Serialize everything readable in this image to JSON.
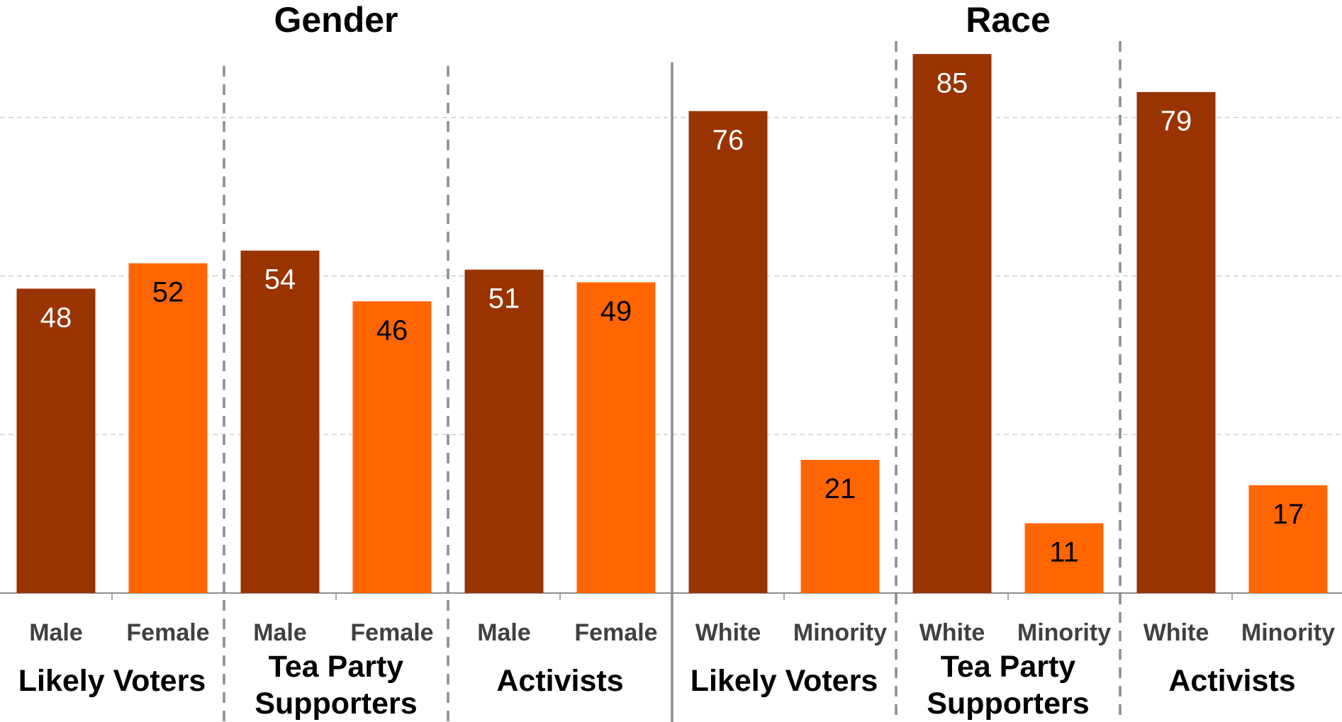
{
  "chart_data": {
    "type": "bar",
    "sections": [
      {
        "title": "Gender",
        "groups": [
          {
            "label": [
              "Likely Voters"
            ],
            "categories": [
              "Male",
              "Female"
            ],
            "values": [
              48,
              52
            ]
          },
          {
            "label": [
              "Tea Party",
              "Supporters"
            ],
            "categories": [
              "Male",
              "Female"
            ],
            "values": [
              54,
              46
            ]
          },
          {
            "label": [
              "Activists"
            ],
            "categories": [
              "Male",
              "Female"
            ],
            "values": [
              51,
              49
            ]
          }
        ]
      },
      {
        "title": "Race",
        "groups": [
          {
            "label": [
              "Likely Voters"
            ],
            "categories": [
              "White",
              "Minority"
            ],
            "values": [
              76,
              21
            ]
          },
          {
            "label": [
              "Tea Party",
              "Supporters"
            ],
            "categories": [
              "White",
              "Minority"
            ],
            "values": [
              85,
              11
            ]
          },
          {
            "label": [
              "Activists"
            ],
            "categories": [
              "White",
              "Minority"
            ],
            "values": [
              79,
              17
            ]
          }
        ]
      }
    ],
    "ylim": [
      0,
      100
    ],
    "grid": true,
    "colors": {
      "first_category": "#993300",
      "second_category": "#FF6600"
    },
    "value_label_colors": {
      "on_dark": "#ffffff",
      "on_light": "#000000"
    }
  }
}
